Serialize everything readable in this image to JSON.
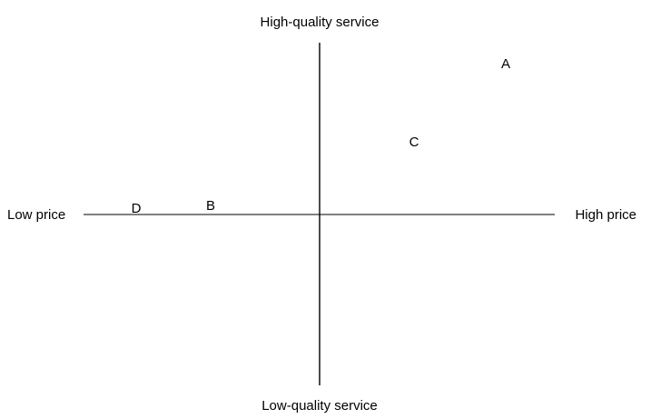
{
  "axes": {
    "top_label": "High-quality service",
    "bottom_label": "Low-quality service",
    "left_label": "Low price",
    "right_label": "High price"
  },
  "points": [
    {
      "label": "A"
    },
    {
      "label": "B"
    },
    {
      "label": "C"
    },
    {
      "label": "D"
    }
  ]
}
